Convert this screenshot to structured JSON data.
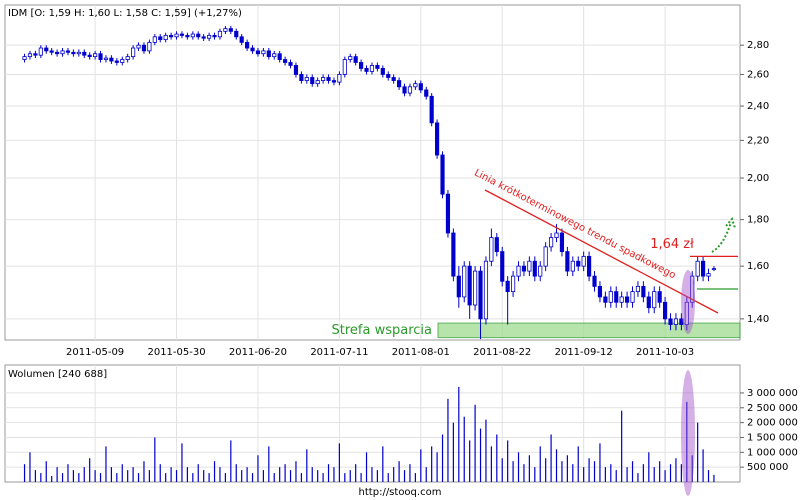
{
  "chart_data": [
    {
      "type": "candlestick",
      "title": "IDM [O: 1,59 H: 1,60 L: 1,58 C: 1,59] (+1,27%)",
      "log_scale": true,
      "grid": true,
      "up_color": "#ffffff",
      "down_color": "#0000cc",
      "edge_color": "#0000cc",
      "xlim": [
        -3.6,
        131.8
      ],
      "xticks": [
        {
          "value": 13,
          "label": "2011-05-09"
        },
        {
          "value": 28,
          "label": "2011-05-30"
        },
        {
          "value": 43,
          "label": "2011-06-20"
        },
        {
          "value": 58,
          "label": "2011-07-11"
        },
        {
          "value": 73,
          "label": "2011-08-01"
        },
        {
          "value": 88,
          "label": "2011-08-22"
        },
        {
          "value": 103,
          "label": "2011-09-12"
        },
        {
          "value": 118,
          "label": "2011-10-03"
        }
      ],
      "ylim": [
        1.327,
        3.1
      ],
      "yticks": [
        {
          "value": 1.4,
          "label": "1,40"
        },
        {
          "value": 1.6,
          "label": "1,60"
        },
        {
          "value": 1.8,
          "label": "1,80"
        },
        {
          "value": 2.0,
          "label": "2,00"
        },
        {
          "value": 2.2,
          "label": "2,20"
        },
        {
          "value": 2.4,
          "label": "2,40"
        },
        {
          "value": 2.6,
          "label": "2,60"
        },
        {
          "value": 2.8,
          "label": "2,80"
        }
      ],
      "open": [
        2.7,
        2.72,
        2.74,
        2.73,
        2.78,
        2.76,
        2.75,
        2.74,
        2.76,
        2.75,
        2.74,
        2.75,
        2.73,
        2.72,
        2.74,
        2.7,
        2.71,
        2.69,
        2.68,
        2.7,
        2.72,
        2.78,
        2.8,
        2.76,
        2.82,
        2.86,
        2.84,
        2.87,
        2.86,
        2.88,
        2.87,
        2.86,
        2.88,
        2.86,
        2.85,
        2.87,
        2.86,
        2.9,
        2.92,
        2.9,
        2.86,
        2.82,
        2.78,
        2.76,
        2.74,
        2.76,
        2.72,
        2.74,
        2.7,
        2.68,
        2.66,
        2.6,
        2.56,
        2.58,
        2.54,
        2.56,
        2.58,
        2.56,
        2.55,
        2.6,
        2.7,
        2.72,
        2.68,
        2.64,
        2.62,
        2.66,
        2.64,
        2.6,
        2.58,
        2.56,
        2.52,
        2.48,
        2.52,
        2.54,
        2.5,
        2.46,
        2.3,
        2.12,
        1.92,
        1.74,
        1.56,
        1.48,
        1.6,
        1.45,
        1.58,
        1.4,
        1.62,
        1.72,
        1.66,
        1.54,
        1.5,
        1.56,
        1.6,
        1.58,
        1.62,
        1.56,
        1.6,
        1.68,
        1.72,
        1.74,
        1.66,
        1.58,
        1.62,
        1.6,
        1.64,
        1.56,
        1.52,
        1.48,
        1.46,
        1.5,
        1.46,
        1.48,
        1.46,
        1.5,
        1.52,
        1.48,
        1.44,
        1.5,
        1.46,
        1.4,
        1.38,
        1.4,
        1.38,
        1.46,
        1.56,
        1.62,
        1.56,
        1.59
      ],
      "high": [
        2.74,
        2.76,
        2.76,
        2.8,
        2.8,
        2.78,
        2.77,
        2.78,
        2.78,
        2.77,
        2.77,
        2.77,
        2.75,
        2.76,
        2.76,
        2.73,
        2.73,
        2.71,
        2.72,
        2.74,
        2.8,
        2.82,
        2.82,
        2.84,
        2.88,
        2.88,
        2.89,
        2.89,
        2.9,
        2.9,
        2.89,
        2.9,
        2.9,
        2.88,
        2.89,
        2.89,
        2.92,
        2.94,
        2.94,
        2.92,
        2.88,
        2.84,
        2.8,
        2.78,
        2.78,
        2.78,
        2.76,
        2.76,
        2.72,
        2.7,
        2.68,
        2.62,
        2.6,
        2.6,
        2.58,
        2.6,
        2.6,
        2.58,
        2.62,
        2.72,
        2.74,
        2.74,
        2.7,
        2.66,
        2.68,
        2.68,
        2.66,
        2.62,
        2.6,
        2.58,
        2.54,
        2.54,
        2.56,
        2.56,
        2.52,
        2.48,
        2.32,
        2.14,
        1.94,
        1.76,
        1.6,
        1.62,
        1.62,
        1.6,
        1.6,
        1.64,
        1.76,
        1.74,
        1.68,
        1.56,
        1.58,
        1.62,
        1.62,
        1.64,
        1.64,
        1.62,
        1.7,
        1.74,
        1.78,
        1.76,
        1.68,
        1.64,
        1.64,
        1.66,
        1.66,
        1.58,
        1.54,
        1.5,
        1.52,
        1.52,
        1.5,
        1.5,
        1.52,
        1.54,
        1.54,
        1.5,
        1.52,
        1.52,
        1.48,
        1.42,
        1.42,
        1.42,
        1.48,
        1.58,
        1.64,
        1.64,
        1.59,
        1.6
      ],
      "low": [
        2.68,
        2.7,
        2.71,
        2.71,
        2.74,
        2.73,
        2.72,
        2.72,
        2.73,
        2.72,
        2.72,
        2.71,
        2.7,
        2.7,
        2.68,
        2.68,
        2.67,
        2.66,
        2.66,
        2.68,
        2.7,
        2.76,
        2.74,
        2.74,
        2.8,
        2.82,
        2.82,
        2.84,
        2.84,
        2.85,
        2.84,
        2.84,
        2.84,
        2.83,
        2.83,
        2.84,
        2.84,
        2.88,
        2.88,
        2.84,
        2.8,
        2.76,
        2.74,
        2.72,
        2.72,
        2.7,
        2.7,
        2.68,
        2.66,
        2.64,
        2.58,
        2.54,
        2.54,
        2.52,
        2.52,
        2.54,
        2.54,
        2.53,
        2.53,
        2.58,
        2.68,
        2.66,
        2.62,
        2.6,
        2.6,
        2.62,
        2.58,
        2.56,
        2.54,
        2.5,
        2.46,
        2.46,
        2.5,
        2.48,
        2.44,
        2.28,
        2.1,
        1.9,
        1.72,
        1.54,
        1.44,
        1.46,
        1.4,
        1.43,
        1.33,
        1.38,
        1.6,
        1.64,
        1.52,
        1.38,
        1.48,
        1.54,
        1.56,
        1.56,
        1.54,
        1.54,
        1.58,
        1.66,
        1.7,
        1.64,
        1.56,
        1.56,
        1.58,
        1.58,
        1.54,
        1.5,
        1.46,
        1.44,
        1.44,
        1.44,
        1.44,
        1.44,
        1.44,
        1.48,
        1.46,
        1.42,
        1.42,
        1.44,
        1.38,
        1.36,
        1.36,
        1.36,
        1.36,
        1.44,
        1.54,
        1.54,
        1.54,
        1.58
      ],
      "close": [
        2.72,
        2.74,
        2.73,
        2.78,
        2.76,
        2.75,
        2.74,
        2.76,
        2.75,
        2.74,
        2.75,
        2.73,
        2.72,
        2.74,
        2.7,
        2.71,
        2.69,
        2.68,
        2.7,
        2.72,
        2.78,
        2.8,
        2.76,
        2.82,
        2.86,
        2.84,
        2.87,
        2.86,
        2.88,
        2.87,
        2.86,
        2.88,
        2.86,
        2.85,
        2.87,
        2.86,
        2.9,
        2.92,
        2.9,
        2.86,
        2.82,
        2.78,
        2.76,
        2.74,
        2.76,
        2.72,
        2.74,
        2.7,
        2.68,
        2.66,
        2.6,
        2.56,
        2.58,
        2.54,
        2.56,
        2.58,
        2.56,
        2.55,
        2.6,
        2.7,
        2.72,
        2.68,
        2.64,
        2.62,
        2.66,
        2.64,
        2.6,
        2.58,
        2.56,
        2.52,
        2.48,
        2.52,
        2.54,
        2.5,
        2.46,
        2.3,
        2.12,
        1.92,
        1.74,
        1.56,
        1.48,
        1.6,
        1.45,
        1.58,
        1.4,
        1.62,
        1.72,
        1.66,
        1.54,
        1.5,
        1.56,
        1.6,
        1.58,
        1.62,
        1.56,
        1.6,
        1.68,
        1.72,
        1.74,
        1.66,
        1.58,
        1.62,
        1.6,
        1.64,
        1.56,
        1.52,
        1.48,
        1.46,
        1.5,
        1.46,
        1.48,
        1.46,
        1.5,
        1.52,
        1.48,
        1.44,
        1.5,
        1.46,
        1.4,
        1.38,
        1.4,
        1.38,
        1.46,
        1.56,
        1.62,
        1.56,
        1.57,
        1.59
      ],
      "level": {
        "value": 1.64,
        "label": "1,64 zł",
        "color": "#e02020"
      },
      "support_zone": {
        "range": [
          1.335,
          1.385
        ],
        "label": "Strefa wsparcia",
        "color": "#2a9a2a"
      },
      "trend_line_label": "Linia krótkoterminowego trendu spadkowego"
    },
    {
      "type": "volume",
      "title": "Wolumen [240 688]",
      "color": "#0000cc",
      "grid": true,
      "ylim": [
        0,
        3940000
      ],
      "yticks": [
        {
          "value": 500000,
          "label": "500 000"
        },
        {
          "value": 1000000,
          "label": "1 000 000"
        },
        {
          "value": 1500000,
          "label": "1 500 000"
        },
        {
          "value": 2000000,
          "label": "2 000 000"
        },
        {
          "value": 2500000,
          "label": "2 500 000"
        },
        {
          "value": 3000000,
          "label": "3 000 000"
        }
      ],
      "values": [
        600000,
        1000000,
        400000,
        300000,
        700000,
        200000,
        500000,
        300000,
        600000,
        400000,
        300000,
        500000,
        800000,
        400000,
        300000,
        1200000,
        500000,
        300000,
        600000,
        400000,
        500000,
        300000,
        700000,
        400000,
        1500000,
        600000,
        300000,
        500000,
        400000,
        1300000,
        500000,
        300000,
        600000,
        400000,
        300000,
        700000,
        500000,
        300000,
        1400000,
        600000,
        400000,
        500000,
        300000,
        900000,
        400000,
        1200000,
        300000,
        500000,
        600000,
        400000,
        700000,
        300000,
        1100000,
        500000,
        400000,
        300000,
        600000,
        500000,
        1300000,
        300000,
        400000,
        600000,
        300000,
        1000000,
        500000,
        400000,
        1200000,
        300000,
        500000,
        700000,
        400000,
        600000,
        300000,
        1100000,
        500000,
        1200000,
        1000000,
        1600000,
        2800000,
        2000000,
        3200000,
        2200000,
        1400000,
        2600000,
        1800000,
        2100000,
        1200000,
        1600000,
        800000,
        1400000,
        700000,
        1000000,
        600000,
        900000,
        500000,
        1200000,
        800000,
        1600000,
        1100000,
        700000,
        900000,
        600000,
        1200000,
        500000,
        800000,
        700000,
        1300000,
        500000,
        600000,
        400000,
        2400000,
        500000,
        700000,
        300000,
        600000,
        1000000,
        500000,
        700000,
        400000,
        600000,
        800000,
        600000,
        2700000,
        900000,
        2000000,
        1100000,
        400000,
        240688
      ]
    }
  ],
  "source": "http://stooq.com"
}
